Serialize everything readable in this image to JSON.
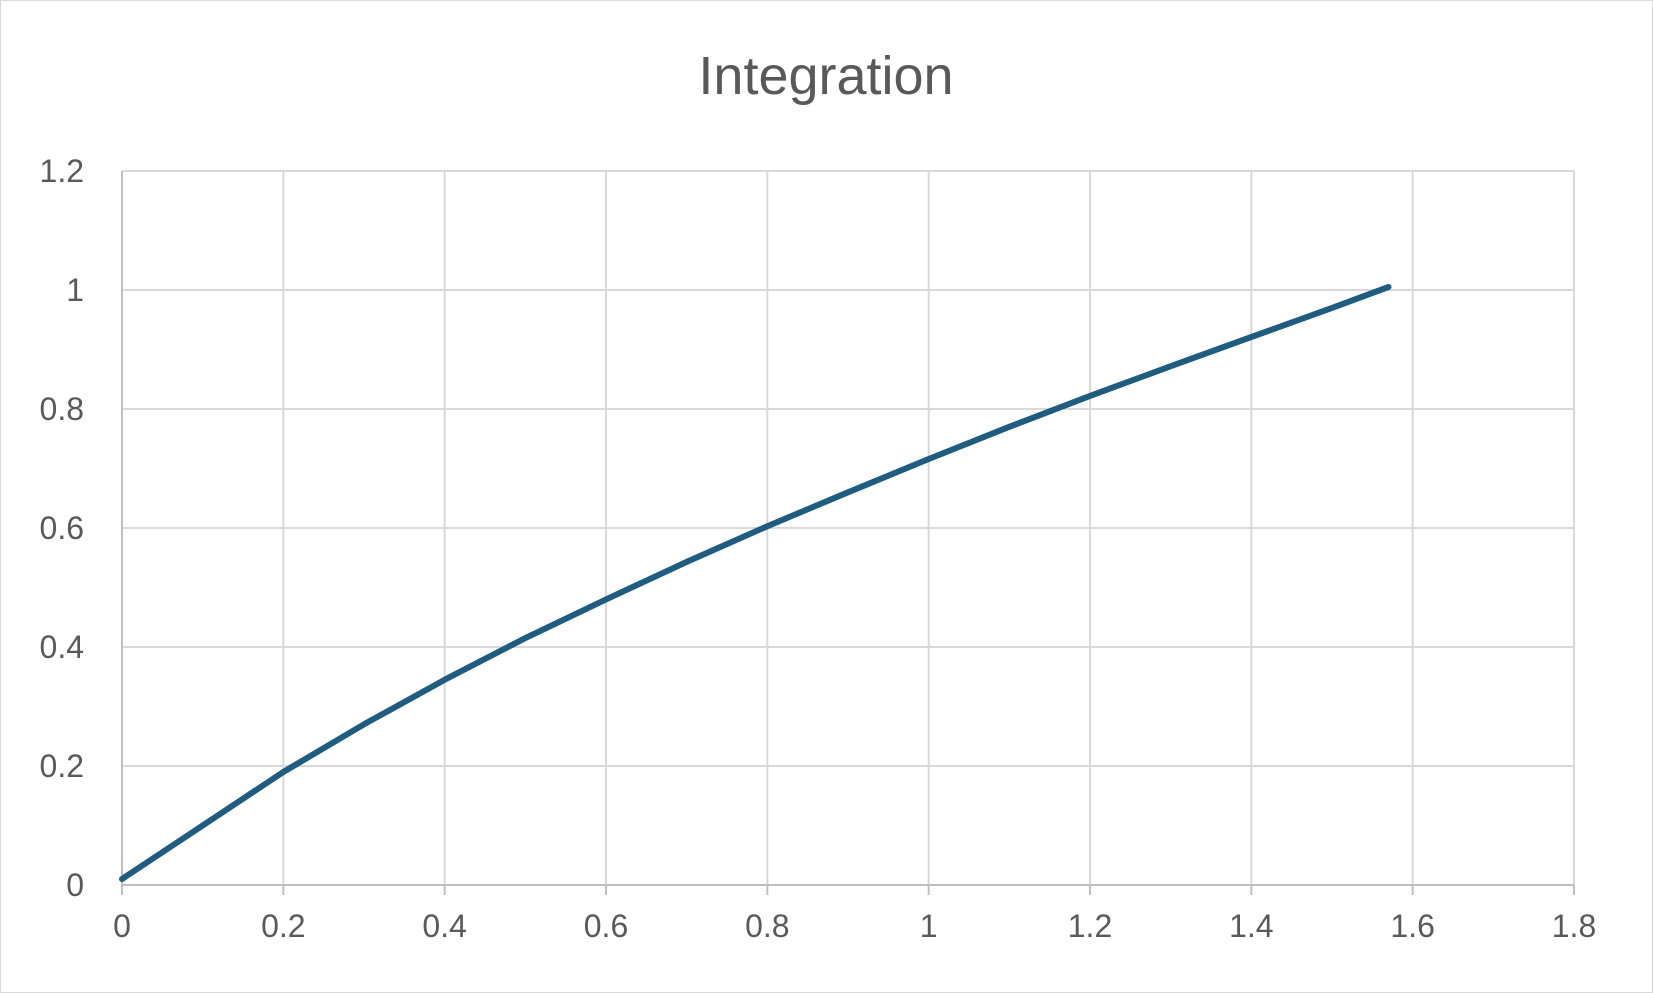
{
  "chart_data": {
    "type": "line",
    "title": "Integration",
    "xlabel": "",
    "ylabel": "",
    "xlim": [
      0,
      1.8
    ],
    "ylim": [
      0,
      1.2
    ],
    "x_ticks": [
      "0",
      "0.2",
      "0.4",
      "0.6",
      "0.8",
      "1",
      "1.2",
      "1.4",
      "1.6",
      "1.8"
    ],
    "y_ticks": [
      "0",
      "0.2",
      "0.4",
      "0.6",
      "0.8",
      "1",
      "1.2"
    ],
    "grid": true,
    "legend": "none",
    "series": [
      {
        "color": "#1f5c80",
        "x": [
          0,
          0.1,
          0.2,
          0.3,
          0.4,
          0.5,
          0.6,
          0.7,
          0.8,
          0.9,
          1.0,
          1.1,
          1.2,
          1.3,
          1.4,
          1.5,
          1.57
        ],
        "y": [
          0.01,
          0.1,
          0.19,
          0.27,
          0.345,
          0.415,
          0.48,
          0.543,
          0.603,
          0.66,
          0.716,
          0.77,
          0.822,
          0.872,
          0.921,
          0.97,
          1.005
        ]
      }
    ]
  }
}
